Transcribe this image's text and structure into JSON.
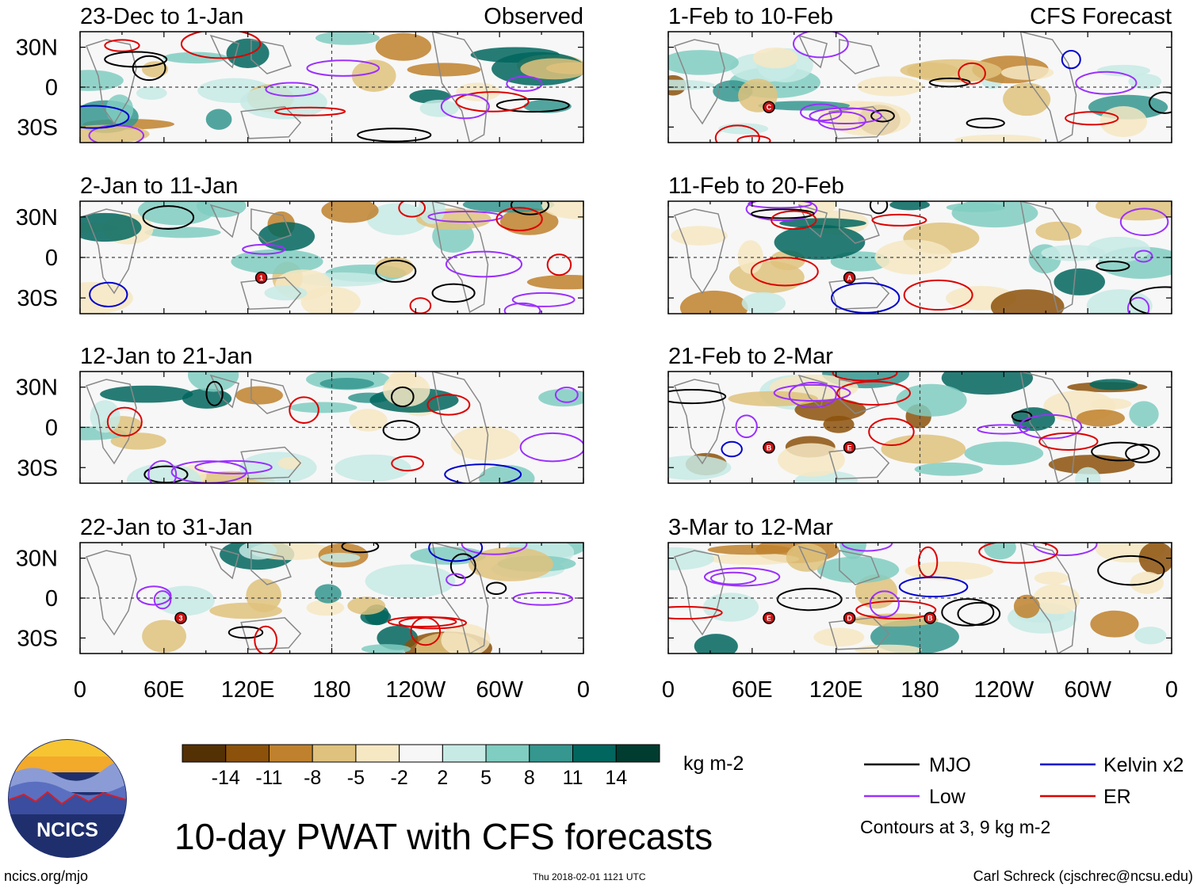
{
  "title": "10-day PWAT with CFS forecasts",
  "website": "ncics.org/mjo",
  "timestamp": "Thu 2018-02-01 1121 UTC",
  "author": "Carl Schreck (cjschrec@ncsu.edu)",
  "logo_text": "NCICS",
  "units": "kg m-2",
  "contours_note": "Contours at 3, 9 kg m-2",
  "observed_label": "Observed",
  "forecast_label": "CFS Forecast",
  "lat_labels": [
    "30N",
    "0",
    "30S"
  ],
  "lon_labels": [
    "0",
    "60E",
    "120E",
    "180",
    "120W",
    "60W",
    "0"
  ],
  "panels_left": [
    {
      "title": "23-Dec to 1-Jan"
    },
    {
      "title": "2-Jan to 11-Jan"
    },
    {
      "title": "12-Jan to 21-Jan"
    },
    {
      "title": "22-Jan to 31-Jan"
    }
  ],
  "panels_right": [
    {
      "title": "1-Feb to 10-Feb"
    },
    {
      "title": "11-Feb to 20-Feb"
    },
    {
      "title": "21-Feb to 2-Mar"
    },
    {
      "title": "3-Mar to 12-Mar"
    }
  ],
  "colorbar": {
    "ticks": [
      "-14",
      "-11",
      "-8",
      "-5",
      "-2",
      "2",
      "5",
      "8",
      "11",
      "14"
    ],
    "colors": [
      "#543005",
      "#8c510a",
      "#bf812d",
      "#dfc27d",
      "#f6e8c3",
      "#f7f7f7",
      "#c7eae5",
      "#80cdc1",
      "#35978f",
      "#01665e",
      "#003c30"
    ]
  },
  "legend": {
    "items": [
      {
        "label": "MJO",
        "color": "#000000"
      },
      {
        "label": "Kelvin x2",
        "color": "#0000cc"
      },
      {
        "label": "Low",
        "color": "#9b30ff"
      },
      {
        "label": "ER",
        "color": "#dd0000"
      }
    ]
  },
  "markers": [
    {
      "panel": "left-2",
      "text": "1"
    },
    {
      "panel": "left-4",
      "text": "3"
    },
    {
      "panel": "right-1",
      "text": "C"
    },
    {
      "panel": "right-2",
      "text": "A"
    },
    {
      "panel": "right-3",
      "text": "B"
    },
    {
      "panel": "right-3",
      "text": "E"
    },
    {
      "panel": "right-4",
      "text": "E"
    },
    {
      "panel": "right-4",
      "text": "D"
    },
    {
      "panel": "right-4",
      "text": "B"
    }
  ]
}
